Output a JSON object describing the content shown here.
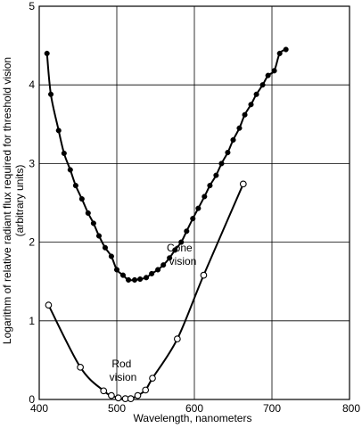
{
  "chart_data": {
    "type": "scatter",
    "title": "",
    "xlabel": "Wavelength, nanometers",
    "ylabel_line1": "Logarithm of relative radiant flux required for threshold vision",
    "ylabel_line2": "(arbitrary units)",
    "xlim": [
      400,
      800
    ],
    "ylim": [
      0,
      5
    ],
    "xticks": [
      400,
      500,
      600,
      700,
      800
    ],
    "yticks": [
      0,
      1,
      2,
      3,
      4,
      5
    ],
    "grid": true,
    "series": [
      {
        "name": "Cone vision",
        "marker": "filled-circle",
        "annotation_lines": [
          "Cone",
          "vision"
        ],
        "x": [
          410,
          415,
          425,
          432,
          440,
          447,
          455,
          463,
          470,
          477,
          485,
          493,
          500,
          508,
          515,
          523,
          530,
          538,
          545,
          553,
          560,
          568,
          575,
          583,
          590,
          598,
          605,
          613,
          620,
          628,
          635,
          643,
          650,
          658,
          665,
          673,
          680,
          688,
          695,
          703,
          710,
          718
        ],
        "y": [
          4.4,
          3.88,
          3.42,
          3.13,
          2.92,
          2.72,
          2.55,
          2.37,
          2.24,
          2.08,
          1.93,
          1.82,
          1.65,
          1.58,
          1.52,
          1.52,
          1.53,
          1.55,
          1.6,
          1.65,
          1.71,
          1.8,
          1.9,
          2.0,
          2.14,
          2.3,
          2.43,
          2.58,
          2.72,
          2.85,
          3.0,
          3.14,
          3.3,
          3.45,
          3.62,
          3.75,
          3.88,
          4.0,
          4.12,
          4.18,
          4.4,
          4.45
        ]
      },
      {
        "name": "Rod vision",
        "marker": "open-circle",
        "annotation_lines": [
          "Rod",
          "vision"
        ],
        "x": [
          412,
          453,
          483,
          493,
          502,
          511,
          518,
          527,
          537,
          546,
          578,
          612,
          663
        ],
        "y": [
          1.2,
          0.41,
          0.11,
          0.05,
          0.02,
          0.01,
          0.01,
          0.05,
          0.12,
          0.27,
          0.77,
          1.58,
          2.74
        ]
      }
    ]
  }
}
